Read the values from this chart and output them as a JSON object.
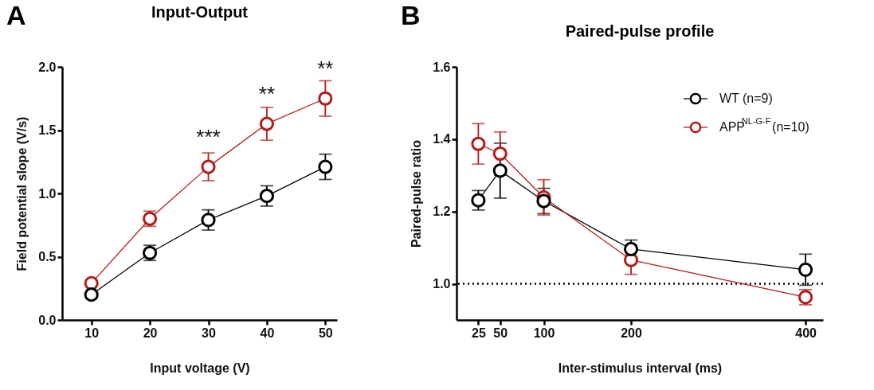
{
  "chart_data": [
    {
      "type": "line",
      "title": "Input-Output",
      "xlabel": "Input voltage (V)",
      "ylabel": "Field potential slope (V/s)",
      "x": [
        10,
        20,
        30,
        40,
        50
      ],
      "xlim": [
        5,
        52
      ],
      "xticks": [
        10,
        20,
        30,
        40,
        50
      ],
      "ylim": [
        0,
        2.0
      ],
      "yticks": [
        {
          "value": 0,
          "label": "0.0"
        },
        0.5,
        {
          "value": 1,
          "label": "1.0"
        },
        1.5,
        {
          "value": 2,
          "label": "2.0"
        }
      ],
      "series": [
        {
          "color": "#000000",
          "values": [
            0.2,
            0.53,
            0.79,
            0.98,
            1.21
          ],
          "errors": [
            null,
            0.06,
            0.08,
            0.08,
            0.1
          ]
        },
        {
          "color": "#b31b1b",
          "values": [
            0.29,
            0.8,
            1.21,
            1.55,
            1.75
          ],
          "errors": [
            null,
            0.06,
            0.11,
            0.13,
            0.14
          ]
        }
      ],
      "marker": "circle",
      "grid": false,
      "legend": false,
      "annotations": [
        "A",
        {
          "text": "***",
          "x": 30,
          "y": 1.21
        },
        {
          "text": "**",
          "x": 40,
          "y": 1.55
        },
        {
          "text": "**",
          "x": 50,
          "y": 1.75
        }
      ]
    },
    {
      "type": "line",
      "title": "Paired-pulse profile",
      "xlabel": "Inter-stimulus interval (ms)",
      "ylabel": "Paired-pulse ratio",
      "x": [
        25,
        50,
        100,
        200,
        400
      ],
      "xlim": [
        0,
        420
      ],
      "xticks": [
        25,
        50,
        100,
        200,
        400
      ],
      "ylim": [
        0.9,
        1.6
      ],
      "yticks": [
        {
          "value": 1,
          "label": "1.0"
        },
        1.2,
        1.4,
        1.6
      ],
      "series": [
        {
          "name": "WT (n=9)",
          "color": "#000000",
          "values": [
            1.231,
            1.313,
            1.229,
            1.096,
            1.039
          ],
          "errors": [
            0.027,
            0.076,
            0.035,
            0.025,
            0.043
          ]
        },
        {
          "name": "APP$^{NL-G-F}$(n=10)",
          "color": "#b31b1b",
          "values": [
            1.387,
            1.36,
            1.239,
            1.066,
            0.963
          ],
          "errors": [
            0.056,
            0.06,
            0.049,
            0.04,
            0.021
          ]
        }
      ],
      "marker": "circle",
      "grid": false,
      "legend": "top right",
      "ref_lines": [
        {
          "axis": "y",
          "value": 1.0,
          "line_style": "dotted"
        }
      ],
      "annotations": [
        "B"
      ]
    }
  ]
}
